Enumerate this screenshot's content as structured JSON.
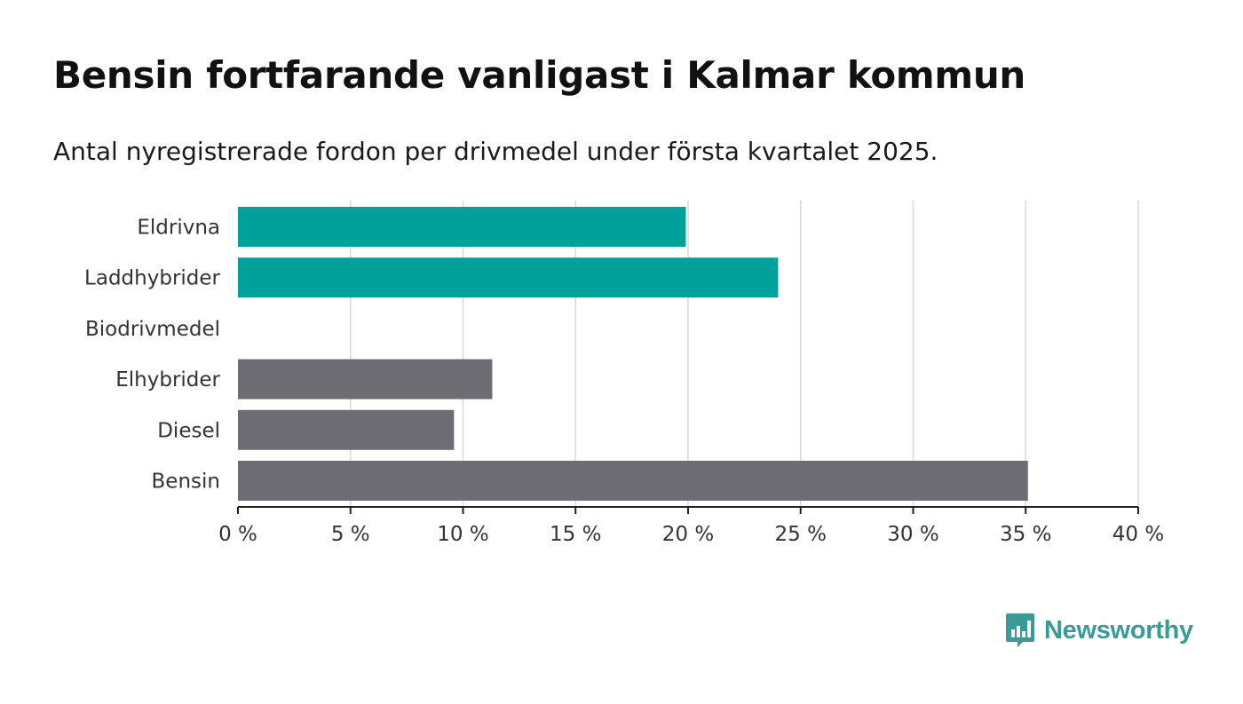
{
  "title": "Bensin fortfarande vanligast i Kalmar kommun",
  "subtitle": "Antal nyregistrerade fordon per drivmedel under första kvartalet 2025.",
  "brand": {
    "name": "Newsworthy",
    "color": "#3a9a95",
    "icon": "bar-chart-speech-bubble-icon"
  },
  "colors": {
    "electric": "#00a19a",
    "fossil": "#6e6d73",
    "grid": "#d9d9d9",
    "axis": "#222222"
  },
  "chart_data": {
    "type": "bar",
    "orientation": "horizontal",
    "categories": [
      "Eldrivna",
      "Laddhybrider",
      "Biodrivmedel",
      "Elhybrider",
      "Diesel",
      "Bensin"
    ],
    "values": [
      19.9,
      24.0,
      0,
      11.3,
      9.6,
      35.1
    ],
    "bar_colors": [
      "#00a19a",
      "#00a19a",
      "#6e6d73",
      "#6e6d73",
      "#6e6d73",
      "#6e6d73"
    ],
    "xlim": [
      0,
      40
    ],
    "ticks": [
      0,
      5,
      10,
      15,
      20,
      25,
      30,
      35,
      40
    ],
    "tick_labels": [
      "0 %",
      "5 %",
      "10 %",
      "15 %",
      "20 %",
      "25 %",
      "30 %",
      "35 %",
      "40 %"
    ],
    "xlabel": "",
    "ylabel": "",
    "grid": true
  }
}
